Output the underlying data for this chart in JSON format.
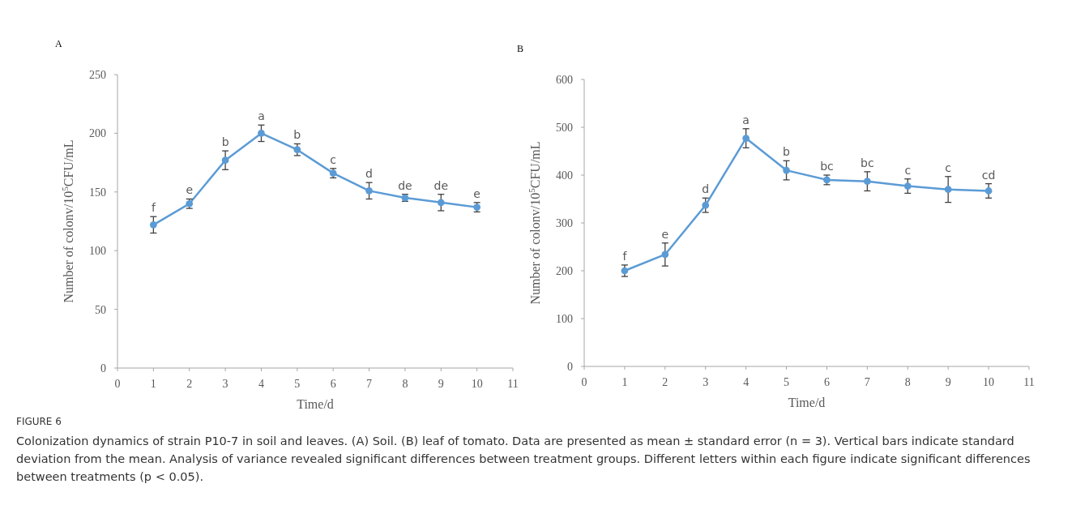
{
  "chart_data": [
    {
      "type": "line",
      "title": "A",
      "xlabel": "Time/d",
      "ylabel": "Number of colonv/10$^{5}$CFU/mL",
      "xlim": [
        0,
        11
      ],
      "xticks": [
        0,
        1,
        2,
        3,
        4,
        5,
        6,
        7,
        8,
        9,
        10,
        11
      ],
      "ylim": [
        0,
        250
      ],
      "yticks": [
        0,
        50,
        100,
        150,
        200,
        250
      ],
      "grid": false,
      "marker": "circle",
      "line_style": "solid",
      "series": [
        {
          "x": [
            1,
            2,
            3,
            4,
            5,
            6,
            7,
            8,
            9,
            10
          ],
          "values": [
            122,
            140,
            177,
            200,
            186,
            166,
            151,
            145,
            141,
            137
          ],
          "errors": [
            7,
            4,
            8,
            7,
            5,
            4,
            7,
            3,
            7,
            4
          ],
          "color": "#5b9bd5"
        }
      ],
      "annotations": [
        {
          "text": "f",
          "x": 1,
          "y": 129
        },
        {
          "text": "e",
          "x": 2,
          "y": 144
        },
        {
          "text": "b",
          "x": 3,
          "y": 185
        },
        {
          "text": "a",
          "x": 4,
          "y": 207
        },
        {
          "text": "b",
          "x": 5,
          "y": 191
        },
        {
          "text": "c",
          "x": 6,
          "y": 170
        },
        {
          "text": "d",
          "x": 7,
          "y": 158
        },
        {
          "text": "de",
          "x": 8,
          "y": 148
        },
        {
          "text": "de",
          "x": 9,
          "y": 148
        },
        {
          "text": "e",
          "x": 10,
          "y": 141
        },
        "FIGURE 6",
        "Colonization dynamics of strain P10-7 in soil and leaves. (A) Soil. (B) leaf of tomato. Data are presented as mean ± standard error (n = 3). Vertical bars indicate standard deviation from the mean. Analysis of variance revealed significant differences between treatment groups. Different letters within each figure indicate significant differences between treatments (p < 0.05)."
      ]
    },
    {
      "type": "line",
      "title": "B",
      "xlabel": "Time/d",
      "ylabel": "Number of colonv/10$^{5}$CFU/mL",
      "xlim": [
        0,
        11
      ],
      "xticks": [
        0,
        1,
        2,
        3,
        4,
        5,
        6,
        7,
        8,
        9,
        10,
        11
      ],
      "ylim": [
        0,
        600
      ],
      "yticks": [
        0,
        100,
        200,
        300,
        400,
        500,
        600
      ],
      "grid": false,
      "marker": "circle",
      "line_style": "solid",
      "series": [
        {
          "x": [
            1,
            2,
            3,
            4,
            5,
            6,
            7,
            8,
            9,
            10
          ],
          "values": [
            200,
            234,
            337,
            477,
            410,
            390,
            387,
            377,
            370,
            367
          ],
          "errors": [
            12,
            24,
            15,
            20,
            20,
            10,
            20,
            15,
            27,
            15
          ],
          "color": "#5b9bd5"
        }
      ],
      "annotations": [
        {
          "text": "f",
          "x": 1,
          "y": 212
        },
        {
          "text": "e",
          "x": 2,
          "y": 258
        },
        {
          "text": "d",
          "x": 3,
          "y": 352
        },
        {
          "text": "a",
          "x": 4,
          "y": 497
        },
        {
          "text": "b",
          "x": 5,
          "y": 430
        },
        {
          "text": "bc",
          "x": 6,
          "y": 400
        },
        {
          "text": "bc",
          "x": 7,
          "y": 407
        },
        {
          "text": "c",
          "x": 8,
          "y": 392
        },
        {
          "text": "c",
          "x": 9,
          "y": 397
        },
        {
          "text": "cd",
          "x": 10,
          "y": 382
        }
      ]
    }
  ]
}
